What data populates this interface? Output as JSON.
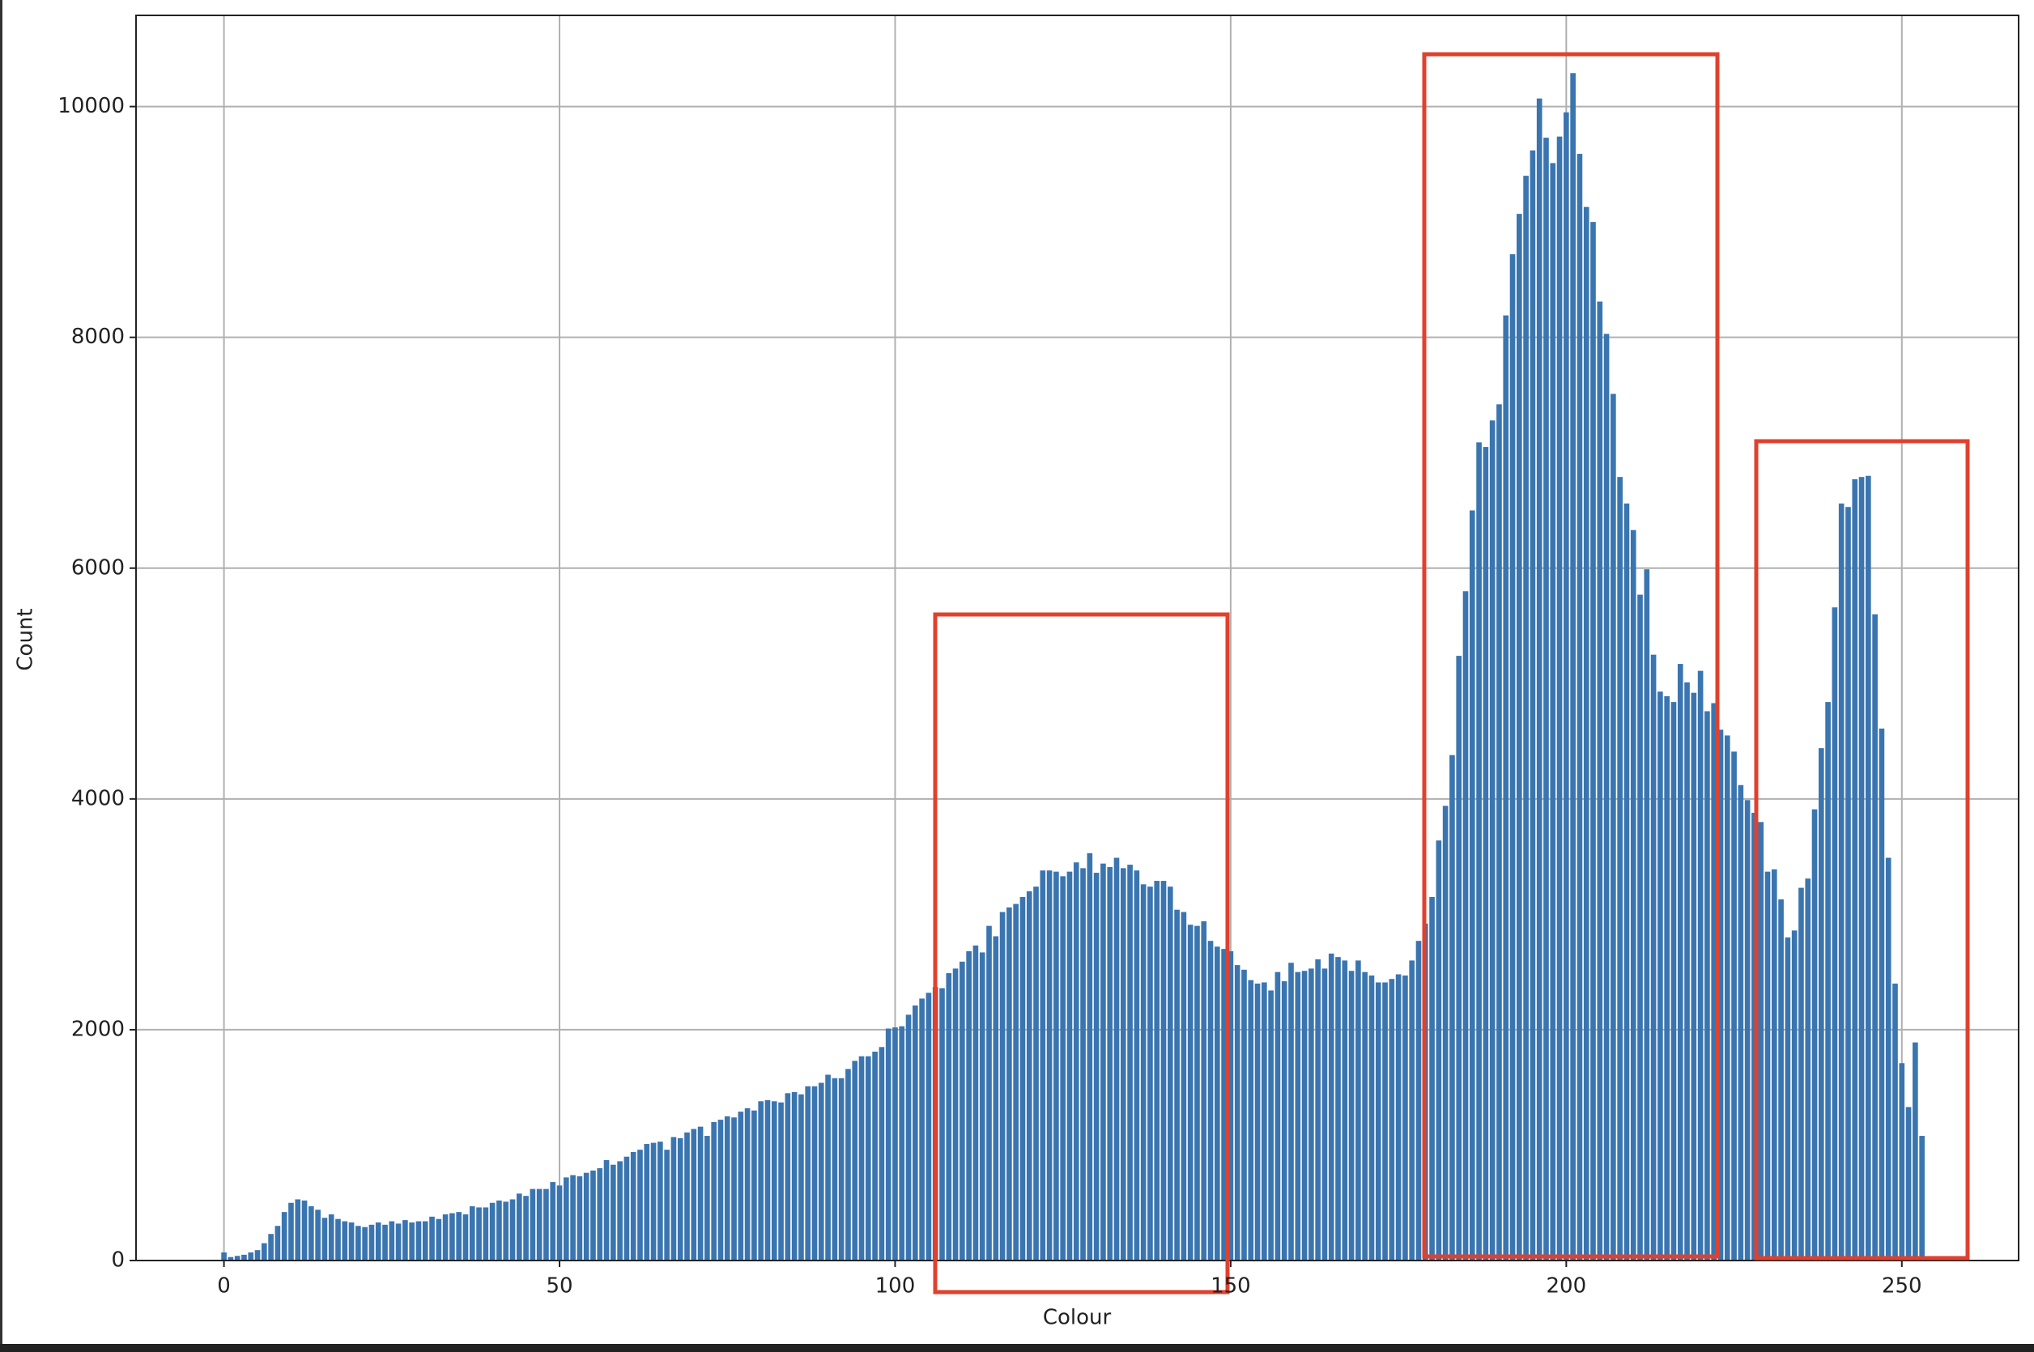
{
  "chart_data": {
    "type": "bar",
    "xlabel": "Colour",
    "ylabel": "Count",
    "color": "#3a75b0",
    "grid": true,
    "x": [
      0,
      1,
      2,
      3,
      4,
      5,
      6,
      7,
      8,
      9,
      10,
      11,
      12,
      13,
      14,
      15,
      16,
      17,
      18,
      19,
      20,
      21,
      22,
      23,
      24,
      25,
      26,
      27,
      28,
      29,
      30,
      31,
      32,
      33,
      34,
      35,
      36,
      37,
      38,
      39,
      40,
      41,
      42,
      43,
      44,
      45,
      46,
      47,
      48,
      49,
      50,
      51,
      52,
      53,
      54,
      55,
      56,
      57,
      58,
      59,
      60,
      61,
      62,
      63,
      64,
      65,
      66,
      67,
      68,
      69,
      70,
      71,
      72,
      73,
      74,
      75,
      76,
      77,
      78,
      79,
      80,
      81,
      82,
      83,
      84,
      85,
      86,
      87,
      88,
      89,
      90,
      91,
      92,
      93,
      94,
      95,
      96,
      97,
      98,
      99,
      100,
      101,
      102,
      103,
      104,
      105,
      106,
      107,
      108,
      109,
      110,
      111,
      112,
      113,
      114,
      115,
      116,
      117,
      118,
      119,
      120,
      121,
      122,
      123,
      124,
      125,
      126,
      127,
      128,
      129,
      130,
      131,
      132,
      133,
      134,
      135,
      136,
      137,
      138,
      139,
      140,
      141,
      142,
      143,
      144,
      145,
      146,
      147,
      148,
      149,
      150,
      151,
      152,
      153,
      154,
      155,
      156,
      157,
      158,
      159,
      160,
      161,
      162,
      163,
      164,
      165,
      166,
      167,
      168,
      169,
      170,
      171,
      172,
      173,
      174,
      175,
      176,
      177,
      178,
      179,
      180,
      181,
      182,
      183,
      184,
      185,
      186,
      187,
      188,
      189,
      190,
      191,
      192,
      193,
      194,
      195,
      196,
      197,
      198,
      199,
      200,
      201,
      202,
      203,
      204,
      205,
      206,
      207,
      208,
      209,
      210,
      211,
      212,
      213,
      214,
      215,
      216,
      217,
      218,
      219,
      220,
      221,
      222,
      223,
      224,
      225,
      226,
      227,
      228,
      229,
      230,
      231,
      232,
      233,
      234,
      235,
      236,
      237,
      238,
      239,
      240,
      241,
      242,
      243,
      244,
      245,
      246,
      247,
      248,
      249,
      250,
      251,
      252,
      253,
      254,
      255
    ],
    "values": [
      70,
      30,
      40,
      50,
      70,
      90,
      150,
      230,
      300,
      420,
      500,
      530,
      520,
      470,
      440,
      370,
      400,
      360,
      340,
      330,
      300,
      290,
      310,
      330,
      310,
      340,
      320,
      350,
      330,
      340,
      340,
      380,
      360,
      400,
      410,
      420,
      400,
      470,
      460,
      460,
      500,
      520,
      510,
      530,
      580,
      560,
      620,
      620,
      620,
      680,
      650,
      720,
      740,
      730,
      760,
      780,
      800,
      870,
      830,
      860,
      900,
      940,
      960,
      1010,
      1020,
      1030,
      960,
      1070,
      1060,
      1110,
      1140,
      1160,
      1080,
      1200,
      1220,
      1250,
      1240,
      1290,
      1320,
      1300,
      1380,
      1390,
      1380,
      1370,
      1450,
      1460,
      1440,
      1510,
      1510,
      1540,
      1610,
      1580,
      1580,
      1660,
      1730,
      1770,
      1770,
      1810,
      1850,
      2010,
      2020,
      2030,
      2130,
      2210,
      2270,
      2320,
      2370,
      2360,
      2490,
      2530,
      2590,
      2680,
      2730,
      2670,
      2900,
      2810,
      3020,
      3060,
      3090,
      3150,
      3200,
      3240,
      3380,
      3380,
      3370,
      3330,
      3370,
      3450,
      3400,
      3530,
      3360,
      3440,
      3410,
      3490,
      3400,
      3430,
      3380,
      3260,
      3240,
      3290,
      3290,
      3240,
      3040,
      3020,
      2910,
      2900,
      2940,
      2770,
      2720,
      2700,
      2680,
      2560,
      2520,
      2430,
      2400,
      2410,
      2340,
      2500,
      2420,
      2580,
      2500,
      2510,
      2530,
      2610,
      2530,
      2660,
      2630,
      2600,
      2510,
      2600,
      2500,
      2470,
      2410,
      2410,
      2440,
      2480,
      2470,
      2600,
      2770,
      2920,
      3150,
      3640,
      3940,
      4380,
      5240,
      5800,
      6500,
      7090,
      7050,
      7280,
      7420,
      8190,
      8720,
      9070,
      9400,
      9620,
      10070,
      9730,
      9510,
      9740,
      9950,
      10290,
      9590,
      9130,
      9000,
      8310,
      8030,
      7510,
      6790,
      6560,
      6330,
      5770,
      5990,
      5250,
      4930,
      4890,
      4840,
      5170,
      5010,
      4920,
      5110,
      4760,
      4830,
      4600,
      4550,
      4410,
      4120,
      3990,
      3880,
      3800,
      3370,
      3390,
      3130,
      2800,
      2860,
      3230,
      3310,
      3910,
      4440,
      4840,
      5660,
      6560,
      6530,
      6770,
      6790,
      6800,
      5600,
      4610,
      3490,
      2400,
      1710,
      1330,
      1890,
      1080,
      0,
      0
    ],
    "xlim": [
      -13.1,
      267.4
    ],
    "ylim": [
      0,
      10790
    ],
    "xticks": [
      0,
      50,
      100,
      150,
      200,
      250
    ],
    "yticks": [
      0,
      2000,
      4000,
      6000,
      8000,
      10000
    ]
  }
}
